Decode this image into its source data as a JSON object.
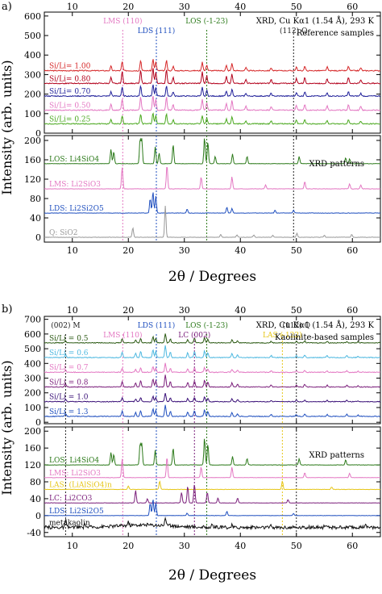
{
  "chart_data": [
    {
      "panel": "a)",
      "type": "line",
      "xlabel": "2θ / Degrees",
      "ylabel": "Intensity (arb. units)",
      "xlim": [
        5,
        65
      ],
      "x_ticks": [
        10,
        20,
        30,
        40,
        50,
        60
      ],
      "top_axis_ticks": [
        10,
        20,
        30,
        40,
        50,
        60
      ],
      "bottom_axis_ticks": [
        10,
        20,
        30,
        40,
        50,
        60
      ],
      "upper": {
        "ylim": [
          0,
          620
        ],
        "y_ticks": [
          0,
          100,
          200,
          300,
          400,
          500,
          600
        ],
        "title_lines": [
          "XRD, Cu Kα1 (1.54 Å), 293 K",
          "Reference samples"
        ],
        "series": [
          {
            "name": "Si/Li= 1.00",
            "color": "#d62728",
            "offset": 320
          },
          {
            "name": "Si/Li= 0.80",
            "color": "#b3001b",
            "offset": 255
          },
          {
            "name": "Si/Li= 0.70",
            "color": "#1f1f99",
            "offset": 190
          },
          {
            "name": "Si/Li= 0.50",
            "color": "#e377c2",
            "offset": 118
          },
          {
            "name": "Si/Li= 0.25",
            "color": "#4aa81e",
            "offset": 48
          }
        ],
        "annotations": [
          {
            "text": "LMS (110)",
            "x": 19,
            "color": "#e377c2"
          },
          {
            "text": "LDS (111)",
            "x": 25,
            "color": "#1f4fbf"
          },
          {
            "text": "LOS (-1-23)",
            "x": 34,
            "color": "#2c7a1a"
          },
          {
            "text": "(112) Q",
            "x": 49.5,
            "color": "#222222"
          }
        ]
      },
      "lower": {
        "ylim": [
          -10,
          210
        ],
        "y_ticks": [
          0,
          40,
          80,
          120,
          160,
          200
        ],
        "title": "XRD patterns",
        "series": [
          {
            "name": "LOS: Li4SiO4",
            "color": "#2c7a1a",
            "offset": 152,
            "peaks": [
              [
                16.9,
                30
              ],
              [
                17.4,
                25
              ],
              [
                22.1,
                50
              ],
              [
                22.4,
                50
              ],
              [
                24.8,
                35
              ],
              [
                25.5,
                22
              ],
              [
                28.0,
                40
              ],
              [
                33.6,
                55
              ],
              [
                34.2,
                45
              ],
              [
                35.5,
                15
              ],
              [
                38.6,
                20
              ],
              [
                41.2,
                15
              ],
              [
                50.5,
                15
              ],
              [
                58.8,
                12
              ],
              [
                59.5,
                10
              ]
            ]
          },
          {
            "name": "LMS: Li2SiO3",
            "color": "#e377c2",
            "offset": 100,
            "peaks": [
              [
                18.9,
                45
              ],
              [
                26.9,
                50
              ],
              [
                33.0,
                25
              ],
              [
                38.5,
                25
              ],
              [
                44.5,
                8
              ],
              [
                51.5,
                15
              ],
              [
                59.5,
                10
              ],
              [
                61.5,
                8
              ]
            ]
          },
          {
            "name": "LDS: Li2Si2O5",
            "color": "#1f4fbf",
            "offset": 50,
            "peaks": [
              [
                23.9,
                30
              ],
              [
                24.4,
                45
              ],
              [
                24.9,
                35
              ],
              [
                30.5,
                8
              ],
              [
                37.6,
                12
              ],
              [
                38.5,
                10
              ],
              [
                46.2,
                6
              ],
              [
                49.5,
                6
              ]
            ]
          },
          {
            "name": "Q: SiO2",
            "color": "#999999",
            "offset": 0,
            "peaks": [
              [
                20.8,
                20
              ],
              [
                26.6,
                65
              ],
              [
                36.5,
                6
              ],
              [
                39.4,
                5
              ],
              [
                42.4,
                5
              ],
              [
                45.8,
                4
              ],
              [
                50.1,
                8
              ],
              [
                55.0,
                4
              ],
              [
                59.9,
                6
              ]
            ]
          }
        ]
      }
    },
    {
      "panel": "b)",
      "type": "line",
      "xlabel": "2θ / Degrees",
      "ylabel": "Intensity (arb. units)",
      "xlim": [
        5,
        65
      ],
      "x_ticks": [
        10,
        20,
        30,
        40,
        50,
        60
      ],
      "top_axis_ticks": [
        10,
        20,
        30,
        40,
        50,
        60
      ],
      "bottom_axis_ticks": [
        10,
        20,
        30,
        40,
        50,
        60
      ],
      "upper": {
        "ylim": [
          -10,
          720
        ],
        "y_ticks": [
          0,
          100,
          200,
          300,
          400,
          500,
          600,
          700
        ],
        "title_lines": [
          "XRD, Cu Kα1 (1.54 Å), 293 K",
          "Kaolinite-based samples"
        ],
        "series": [
          {
            "name": "Si/Li = 0.5",
            "color": "#2c5a14",
            "offset": 540
          },
          {
            "name": "Si/Li = 0.6",
            "color": "#4db8e0",
            "offset": 440
          },
          {
            "name": "Si/Li = 0.7",
            "color": "#e377c2",
            "offset": 340
          },
          {
            "name": "Si/Li = 0.8",
            "color": "#7b1f7b",
            "offset": 240
          },
          {
            "name": "Si/Li = 1.0",
            "color": "#3a1078",
            "offset": 140
          },
          {
            "name": "Si/Li = 1.3",
            "color": "#1f4fbf",
            "offset": 40
          }
        ],
        "annotations": [
          {
            "text": "(002) M",
            "x": 8.8,
            "color": "#222222"
          },
          {
            "text": "LMS (110)",
            "x": 19,
            "color": "#e377c2"
          },
          {
            "text": "LDS (111)",
            "x": 25,
            "color": "#1f4fbf"
          },
          {
            "text": "LC (002)",
            "x": 31.8,
            "color": "#7b1f7b"
          },
          {
            "text": "LOS (-1-23)",
            "x": 34,
            "color": "#2c7a1a"
          },
          {
            "text": "LAS (-122)",
            "x": 47.5,
            "color": "#e6c619"
          },
          {
            "text": "(112) Q",
            "x": 50,
            "color": "#222222"
          }
        ]
      },
      "lower": {
        "ylim": [
          -50,
          210
        ],
        "y_ticks": [
          -40,
          0,
          40,
          80,
          120,
          160,
          200
        ],
        "title": "XRD patterns",
        "series": [
          {
            "name": "LOS: Li4SiO4",
            "color": "#2c7a1a",
            "offset": 120,
            "peaks": [
              [
                16.9,
                30
              ],
              [
                17.4,
                25
              ],
              [
                22.1,
                50
              ],
              [
                22.4,
                50
              ],
              [
                24.8,
                35
              ],
              [
                28.0,
                40
              ],
              [
                33.6,
                65
              ],
              [
                34.2,
                50
              ],
              [
                38.6,
                20
              ],
              [
                41.2,
                15
              ],
              [
                50.5,
                15
              ],
              [
                58.8,
                12
              ]
            ]
          },
          {
            "name": "LMS: Li2SiO3",
            "color": "#e377c2",
            "offset": 90,
            "peaks": [
              [
                18.9,
                45
              ],
              [
                26.9,
                50
              ],
              [
                33.0,
                25
              ],
              [
                38.5,
                25
              ],
              [
                51.5,
                12
              ],
              [
                59.5,
                10
              ]
            ]
          },
          {
            "name": "LAS: (LiAlSiO4)n",
            "color": "#e6c619",
            "offset": 62,
            "peaks": [
              [
                20.0,
                8
              ],
              [
                25.6,
                20
              ],
              [
                47.5,
                20
              ],
              [
                56.3,
                6
              ]
            ]
          },
          {
            "name": "LC: Li2CO3",
            "color": "#7b1f7b",
            "offset": 30,
            "peaks": [
              [
                21.3,
                30
              ],
              [
                23.4,
                10
              ],
              [
                29.5,
                25
              ],
              [
                30.6,
                40
              ],
              [
                31.8,
                45
              ],
              [
                34.1,
                25
              ],
              [
                36.0,
                12
              ],
              [
                39.5,
                12
              ],
              [
                48.5,
                8
              ]
            ]
          },
          {
            "name": "LDS: Li2Si2O5",
            "color": "#1f4fbf",
            "offset": 0,
            "peaks": [
              [
                23.9,
                30
              ],
              [
                24.4,
                40
              ],
              [
                24.9,
                30
              ],
              [
                30.5,
                6
              ],
              [
                37.6,
                10
              ],
              [
                49.5,
                5
              ]
            ]
          },
          {
            "name": "metakaolin",
            "color": "#111111",
            "offset": -28,
            "peaks": [
              [
                8.8,
                18
              ],
              [
                12.3,
                8
              ],
              [
                20.0,
                8
              ],
              [
                26.6,
                20
              ],
              [
                35.0,
                6
              ],
              [
                38.5,
                5
              ],
              [
                45.5,
                4
              ],
              [
                55.0,
                5
              ],
              [
                62.3,
                4
              ]
            ]
          }
        ],
        "dotted_lines": [
          {
            "x": 8.8,
            "color": "#222222"
          },
          {
            "x": 19,
            "color": "#e377c2"
          },
          {
            "x": 25,
            "color": "#1f4fbf"
          },
          {
            "x": 31.8,
            "color": "#7b1f7b"
          },
          {
            "x": 34,
            "color": "#2c7a1a"
          },
          {
            "x": 47.5,
            "color": "#e6c619"
          },
          {
            "x": 50,
            "color": "#222222"
          }
        ]
      }
    }
  ]
}
